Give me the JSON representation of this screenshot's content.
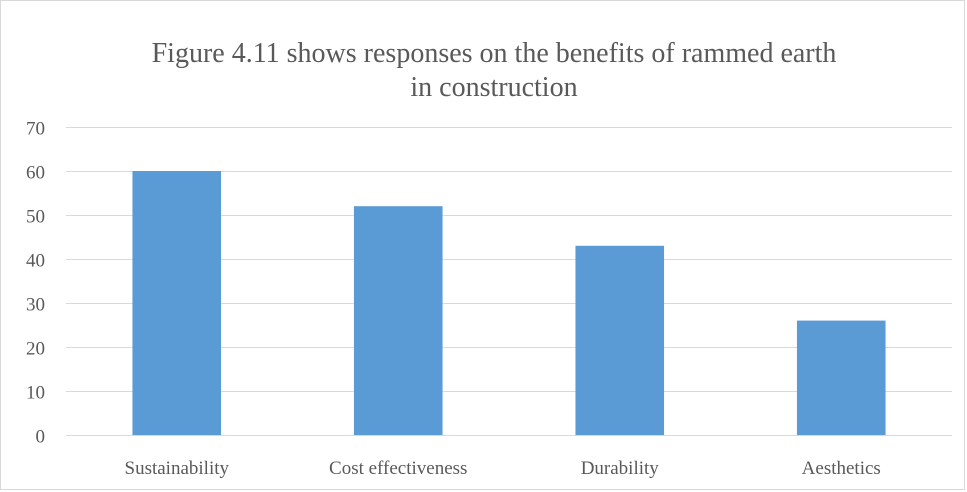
{
  "chart_data": {
    "type": "bar",
    "title_lines": [
      "Figure 4.11 shows responses on the benefits of rammed earth",
      "in construction"
    ],
    "categories": [
      "Sustainability",
      "Cost effectiveness",
      "Durability",
      "Aesthetics"
    ],
    "values": [
      60,
      52,
      43,
      26
    ],
    "ylim": [
      0,
      70
    ],
    "yticks": [
      0,
      10,
      20,
      30,
      40,
      50,
      60,
      70
    ],
    "ytick_labels": [
      "0",
      "10",
      "20",
      "30",
      "40",
      "50",
      "60",
      "70"
    ],
    "grid": true,
    "legend": "none",
    "bar_color": "#5b9bd5",
    "grid_color": "#d9d9d9",
    "text_color": "#595959"
  }
}
